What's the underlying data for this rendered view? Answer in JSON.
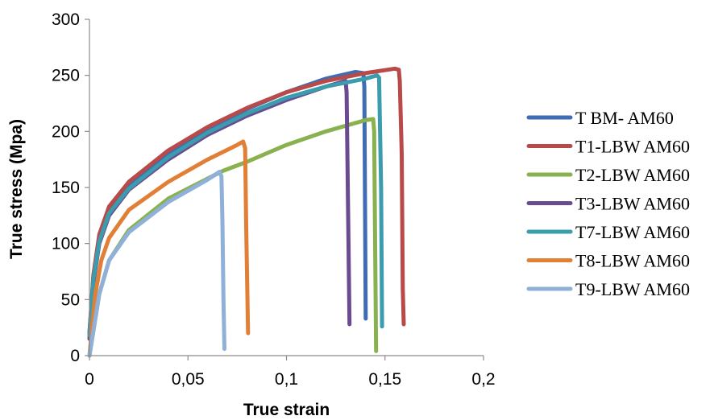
{
  "chart_data": {
    "type": "line",
    "title": "",
    "xlabel": "True strain",
    "ylabel": "True stress (Mpa)",
    "xlim": [
      0,
      0.2
    ],
    "ylim": [
      0,
      300
    ],
    "x_ticks": [
      0,
      0.05,
      0.1,
      0.15,
      0.2
    ],
    "y_ticks": [
      0,
      50,
      100,
      150,
      200,
      250,
      300
    ],
    "x_tick_labels": [
      "0",
      "0,05",
      "0,1",
      "0,15",
      "0,2"
    ],
    "y_tick_labels": [
      "0",
      "50",
      "100",
      "150",
      "200",
      "250",
      "300"
    ],
    "grid": false,
    "legend_position": "right",
    "series": [
      {
        "name": "T BM- AM60",
        "color": "#3f6db3",
        "points": [
          [
            0,
            20
          ],
          [
            0.002,
            70
          ],
          [
            0.005,
            105
          ],
          [
            0.01,
            130
          ],
          [
            0.02,
            152
          ],
          [
            0.04,
            180
          ],
          [
            0.06,
            202
          ],
          [
            0.08,
            220
          ],
          [
            0.1,
            235
          ],
          [
            0.12,
            247
          ],
          [
            0.135,
            253
          ],
          [
            0.139,
            252
          ],
          [
            0.1395,
            240
          ],
          [
            0.1402,
            33
          ]
        ]
      },
      {
        "name": "T1-LBW AM60",
        "color": "#b84a4a",
        "points": [
          [
            0,
            20
          ],
          [
            0.002,
            72
          ],
          [
            0.005,
            108
          ],
          [
            0.01,
            133
          ],
          [
            0.02,
            155
          ],
          [
            0.04,
            183
          ],
          [
            0.06,
            204
          ],
          [
            0.08,
            221
          ],
          [
            0.1,
            235
          ],
          [
            0.12,
            245
          ],
          [
            0.14,
            252
          ],
          [
            0.155,
            256
          ],
          [
            0.157,
            255
          ],
          [
            0.1575,
            245
          ],
          [
            0.1585,
            180
          ],
          [
            0.159,
            60
          ],
          [
            0.1595,
            28
          ]
        ]
      },
      {
        "name": "T2-LBW AM60",
        "color": "#8ab14f",
        "points": [
          [
            0,
            0
          ],
          [
            0.005,
            55
          ],
          [
            0.01,
            85
          ],
          [
            0.02,
            112
          ],
          [
            0.04,
            140
          ],
          [
            0.06,
            158
          ],
          [
            0.068,
            165
          ],
          [
            0.08,
            173
          ],
          [
            0.1,
            188
          ],
          [
            0.12,
            200
          ],
          [
            0.14,
            210
          ],
          [
            0.144,
            211
          ],
          [
            0.1445,
            200
          ],
          [
            0.145,
            100
          ],
          [
            0.1455,
            4
          ]
        ]
      },
      {
        "name": "T3-LBW AM60",
        "color": "#6a4a91",
        "points": [
          [
            0,
            15
          ],
          [
            0.002,
            65
          ],
          [
            0.005,
            100
          ],
          [
            0.01,
            125
          ],
          [
            0.02,
            148
          ],
          [
            0.04,
            175
          ],
          [
            0.06,
            197
          ],
          [
            0.08,
            214
          ],
          [
            0.1,
            228
          ],
          [
            0.12,
            240
          ],
          [
            0.13,
            245
          ],
          [
            0.1305,
            235
          ],
          [
            0.132,
            28
          ]
        ]
      },
      {
        "name": "T7-LBW AM60",
        "color": "#3a9cad",
        "points": [
          [
            0,
            18
          ],
          [
            0.002,
            68
          ],
          [
            0.005,
            102
          ],
          [
            0.01,
            127
          ],
          [
            0.02,
            149
          ],
          [
            0.04,
            177
          ],
          [
            0.06,
            199
          ],
          [
            0.08,
            216
          ],
          [
            0.1,
            230
          ],
          [
            0.12,
            240
          ],
          [
            0.14,
            247
          ],
          [
            0.146,
            250
          ],
          [
            0.147,
            248
          ],
          [
            0.148,
            150
          ],
          [
            0.1485,
            26
          ]
        ]
      },
      {
        "name": "T8-LBW AM60",
        "color": "#e07f35",
        "points": [
          [
            0,
            0
          ],
          [
            0.003,
            55
          ],
          [
            0.006,
            85
          ],
          [
            0.01,
            105
          ],
          [
            0.02,
            130
          ],
          [
            0.04,
            155
          ],
          [
            0.06,
            175
          ],
          [
            0.075,
            188
          ],
          [
            0.078,
            191
          ],
          [
            0.079,
            185
          ],
          [
            0.0795,
            120
          ],
          [
            0.0805,
            20
          ]
        ]
      },
      {
        "name": "T9-LBW AM60",
        "color": "#8fb0d9",
        "points": [
          [
            0,
            0
          ],
          [
            0.005,
            55
          ],
          [
            0.01,
            85
          ],
          [
            0.02,
            110
          ],
          [
            0.04,
            137
          ],
          [
            0.06,
            157
          ],
          [
            0.066,
            164
          ],
          [
            0.067,
            160
          ],
          [
            0.0675,
            120
          ],
          [
            0.068,
            50
          ],
          [
            0.0685,
            6
          ]
        ]
      }
    ]
  }
}
